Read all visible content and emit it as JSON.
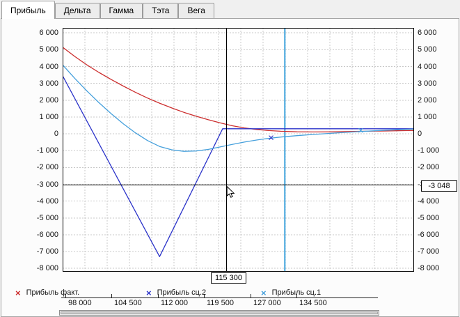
{
  "tabs": [
    {
      "label": "Прибыль",
      "active": true
    },
    {
      "label": "Дельта",
      "active": false
    },
    {
      "label": "Гамма",
      "active": false
    },
    {
      "label": "Тэта",
      "active": false
    },
    {
      "label": "Вега",
      "active": false
    }
  ],
  "legend": [
    {
      "symbol": "×",
      "label": "Прибыль факт.",
      "color": "#cc2e2e"
    },
    {
      "symbol": "×",
      "label": "Прибыль сц.2",
      "color": "#2b33c9"
    },
    {
      "symbol": "×",
      "label": "Прибыль сц.1",
      "color": "#46a0dc"
    }
  ],
  "chart_data": {
    "type": "line",
    "x_domain": [
      95000,
      138500
    ],
    "y_domain": [
      -8200,
      6300
    ],
    "grid": true,
    "y_tick_labels": [
      "6 000",
      "5 000",
      "4 000",
      "3 000",
      "2 000",
      "1 000",
      "0",
      "-1 000",
      "-2 000",
      "-3 000",
      "-4 000",
      "-5 000",
      "-6 000",
      "-7 000",
      "-8 000"
    ],
    "x_axis_labels": [
      "98 000",
      "104 500",
      "112 000",
      "119 500",
      "127 000",
      "134 500"
    ],
    "series": [
      {
        "name": "Прибыль факт.",
        "color": "#cc2e2e",
        "points": [
          [
            95000,
            5150
          ],
          [
            96500,
            4600
          ],
          [
            98000,
            4100
          ],
          [
            99500,
            3650
          ],
          [
            101000,
            3230
          ],
          [
            102500,
            2840
          ],
          [
            104000,
            2470
          ],
          [
            105500,
            2130
          ],
          [
            107000,
            1820
          ],
          [
            108500,
            1540
          ],
          [
            110000,
            1280
          ],
          [
            111500,
            1050
          ],
          [
            113000,
            840
          ],
          [
            114500,
            650
          ],
          [
            116000,
            480
          ],
          [
            117500,
            350
          ],
          [
            119000,
            260
          ],
          [
            120500,
            195
          ],
          [
            122000,
            150
          ],
          [
            124000,
            120
          ],
          [
            126000,
            110
          ],
          [
            128000,
            115
          ],
          [
            130000,
            130
          ],
          [
            132500,
            150
          ],
          [
            135000,
            170
          ],
          [
            138500,
            200
          ]
        ]
      },
      {
        "name": "Прибыль сц.2",
        "color": "#2b33c9",
        "points": [
          [
            95000,
            3450
          ],
          [
            107000,
            -7300
          ],
          [
            114800,
            300
          ],
          [
            138500,
            300
          ]
        ]
      },
      {
        "name": "Прибыль сц.1",
        "color": "#46a0dc",
        "points": [
          [
            95000,
            4100
          ],
          [
            96500,
            3300
          ],
          [
            98000,
            2550
          ],
          [
            99500,
            1850
          ],
          [
            101000,
            1200
          ],
          [
            102500,
            600
          ],
          [
            104000,
            60
          ],
          [
            105500,
            -400
          ],
          [
            107000,
            -750
          ],
          [
            108500,
            -950
          ],
          [
            110000,
            -1040
          ],
          [
            111500,
            -1020
          ],
          [
            113000,
            -930
          ],
          [
            114500,
            -780
          ],
          [
            116000,
            -630
          ],
          [
            117500,
            -490
          ],
          [
            119000,
            -370
          ],
          [
            120500,
            -270
          ],
          [
            122000,
            -190
          ],
          [
            124000,
            -110
          ],
          [
            126000,
            -40
          ],
          [
            128000,
            25
          ],
          [
            130000,
            85
          ],
          [
            132000,
            140
          ],
          [
            134500,
            200
          ],
          [
            136500,
            245
          ],
          [
            138500,
            285
          ]
        ]
      }
    ],
    "markers": [
      {
        "x": 120800,
        "y": -230,
        "color": "#2b33c9"
      },
      {
        "x": 131900,
        "y": 205,
        "color": "#46a0dc"
      }
    ],
    "price_line": {
      "x": 122500,
      "color": "#3da2dc"
    },
    "crosshair": {
      "x": 115300,
      "x_label": "115 300",
      "y": -3048,
      "y_label": "-3 048"
    }
  }
}
